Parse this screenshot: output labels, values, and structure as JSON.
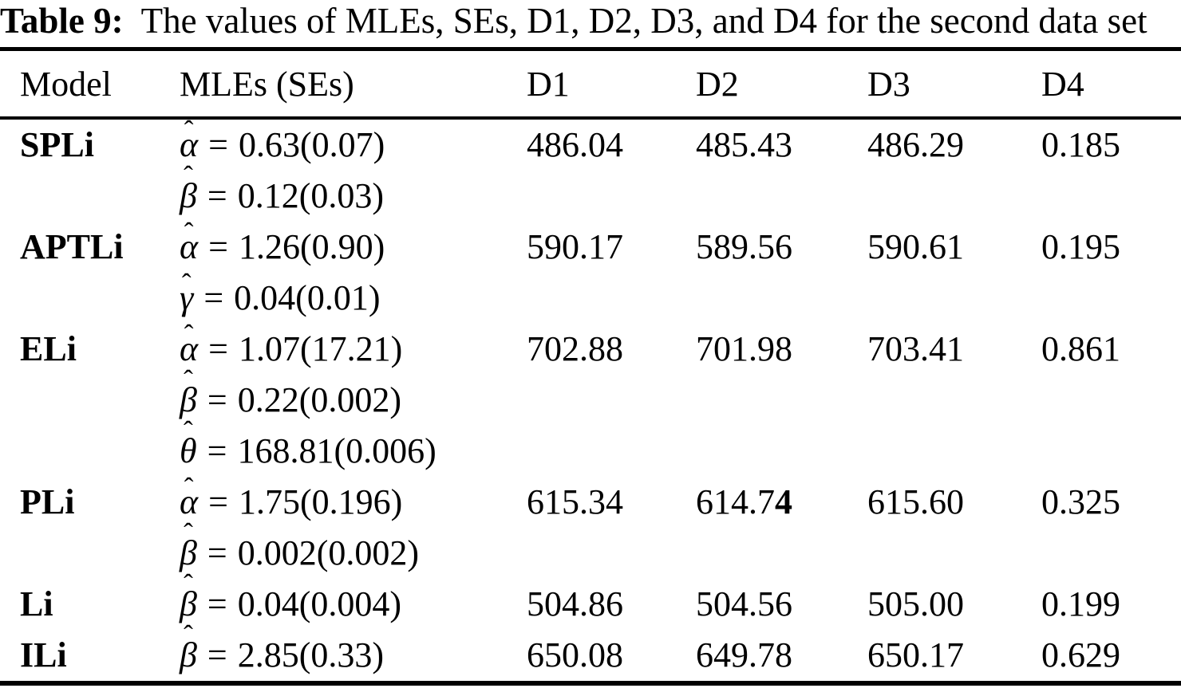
{
  "caption": {
    "label": "Table 9:",
    "text": "The values of MLEs, SEs, D1, D2, D3, and D4 for the second data set"
  },
  "table": {
    "hat_symbol": "ˆ",
    "equals_sign": "=",
    "columns": {
      "model": "Model",
      "mles": "MLEs (SEs)",
      "d1": "D1",
      "d2": "D2",
      "d3": "D3",
      "d4": "D4"
    },
    "rows": [
      {
        "model": "SPLi",
        "params": [
          {
            "symbol": "α",
            "value": "0.63(0.07)"
          },
          {
            "symbol": "β",
            "value": "0.12(0.03)"
          }
        ],
        "d1": "486.04",
        "d2": "485.43",
        "d3": "486.29",
        "d4": "0.185"
      },
      {
        "model": "APTLi",
        "params": [
          {
            "symbol": "α",
            "value": "1.26(0.90)"
          },
          {
            "symbol": "γ",
            "value": "0.04(0.01)"
          }
        ],
        "d1": "590.17",
        "d2": "589.56",
        "d3": "590.61",
        "d4": "0.195"
      },
      {
        "model": "ELi",
        "params": [
          {
            "symbol": "α",
            "value": "1.07(17.21)"
          },
          {
            "symbol": "β",
            "value": "0.22(0.002)"
          },
          {
            "symbol": "θ",
            "value": "168.81(0.006)"
          }
        ],
        "d1": "702.88",
        "d2": "701.98",
        "d3": "703.41",
        "d4": "0.861"
      },
      {
        "model": "PLi",
        "params": [
          {
            "symbol": "α",
            "value": "1.75(0.196)"
          },
          {
            "symbol": "β",
            "value": "0.002(0.002)"
          }
        ],
        "d1": "615.34",
        "d2": "614.7",
        "d2_bold": "4",
        "d3": "615.60",
        "d4": "0.325"
      },
      {
        "model": "Li",
        "params": [
          {
            "symbol": "β",
            "value": "0.04(0.004)"
          }
        ],
        "d1": "504.86",
        "d2": "504.56",
        "d3": "505.00",
        "d4": "0.199"
      },
      {
        "model": "ILi",
        "params": [
          {
            "symbol": "β",
            "value": "2.85(0.33)"
          }
        ],
        "d1": "650.08",
        "d2": "649.78",
        "d3": "650.17",
        "d4": "0.629"
      }
    ]
  }
}
